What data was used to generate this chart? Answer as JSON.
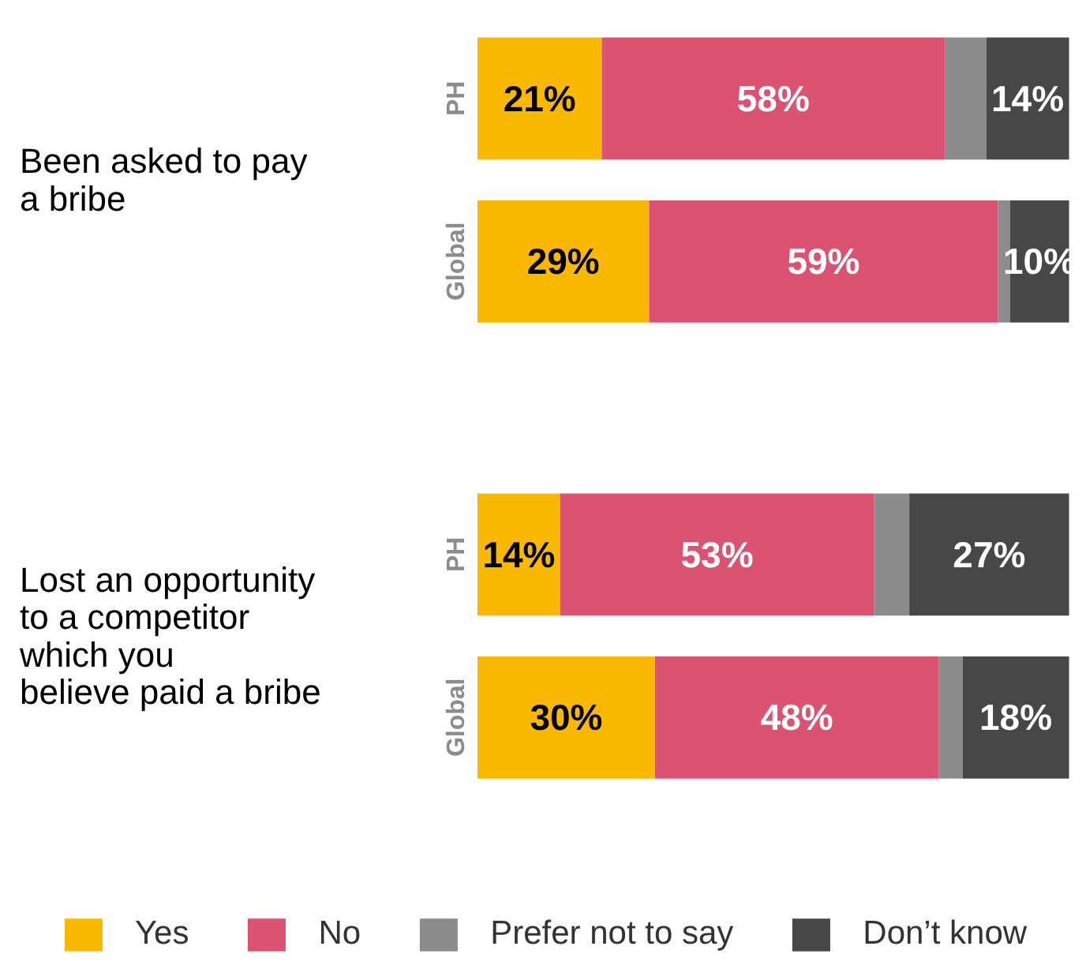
{
  "chart_data": {
    "type": "bar",
    "orientation": "horizontal",
    "stacked": true,
    "categories": [
      "PH",
      "Global",
      "PH",
      "Global"
    ],
    "annotations": [
      "Been asked to pay\na bribe",
      "Lost an opportunity\nto a competitor\nwhich you\nbelieve paid a bribe"
    ],
    "series": [
      {
        "name": "Yes",
        "color": "#fbb800",
        "values": [
          21,
          29,
          14,
          30
        ],
        "value_labels": [
          "21%",
          "29%",
          "14%",
          "30%"
        ]
      },
      {
        "name": "No",
        "color": "#db5370",
        "values": [
          58,
          59,
          53,
          48
        ],
        "value_labels": [
          "58%",
          "59%",
          "53%",
          "48%"
        ]
      },
      {
        "name": "Prefer not to say",
        "color": "#8c8c8c",
        "values": [
          7,
          2,
          6,
          4
        ],
        "value_labels": [
          null,
          null,
          null,
          null
        ]
      },
      {
        "name": "Don’t know",
        "color": "#474747",
        "values": [
          14,
          10,
          27,
          18
        ],
        "value_labels": [
          "14%",
          "10%",
          "27%",
          "18%"
        ]
      }
    ],
    "legend": "bottom",
    "grid": false
  }
}
